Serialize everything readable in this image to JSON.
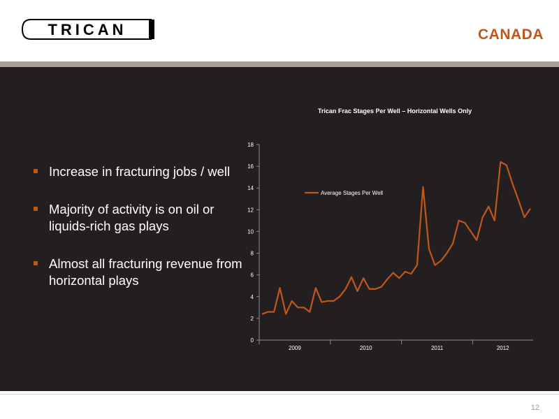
{
  "header": {
    "logo_text": "TRICAN",
    "region": "CANADA"
  },
  "bullets": [
    "Increase in fracturing jobs / well",
    "Majority of activity is on oil or liquids-rich gas plays",
    "Almost all fracturing revenue from horizontal plays"
  ],
  "footer": {
    "page_number": "12"
  },
  "colors": {
    "accent": "#c0561c",
    "panel": "#231f20",
    "stripe": "#a79f96"
  },
  "chart_data": {
    "type": "line",
    "title": "Trican Frac Stages Per Well – Horizontal Wells Only",
    "xlabel": "",
    "ylabel": "",
    "ylim": [
      0,
      18
    ],
    "yticks": [
      0,
      2,
      4,
      6,
      8,
      10,
      12,
      14,
      16,
      18
    ],
    "year_labels": [
      "2009",
      "2010",
      "2011",
      "2012"
    ],
    "legend_position": "upper-left-inside",
    "grid": false,
    "series": [
      {
        "name": "Average Stages Per Well",
        "color": "#c0561c",
        "values": [
          2.4,
          2.6,
          2.6,
          4.8,
          2.4,
          3.6,
          3.0,
          3.0,
          2.6,
          4.8,
          3.5,
          3.6,
          3.6,
          4.0,
          4.7,
          5.8,
          4.5,
          5.7,
          4.7,
          4.7,
          4.9,
          5.6,
          6.2,
          5.7,
          6.3,
          6.1,
          6.9,
          14.1,
          8.4,
          6.9,
          7.3,
          8.0,
          8.9,
          11.0,
          10.8,
          10.0,
          9.2,
          11.3,
          12.3,
          11.0,
          16.4,
          16.1,
          14.4,
          12.9,
          11.3,
          12.1
        ]
      }
    ]
  }
}
